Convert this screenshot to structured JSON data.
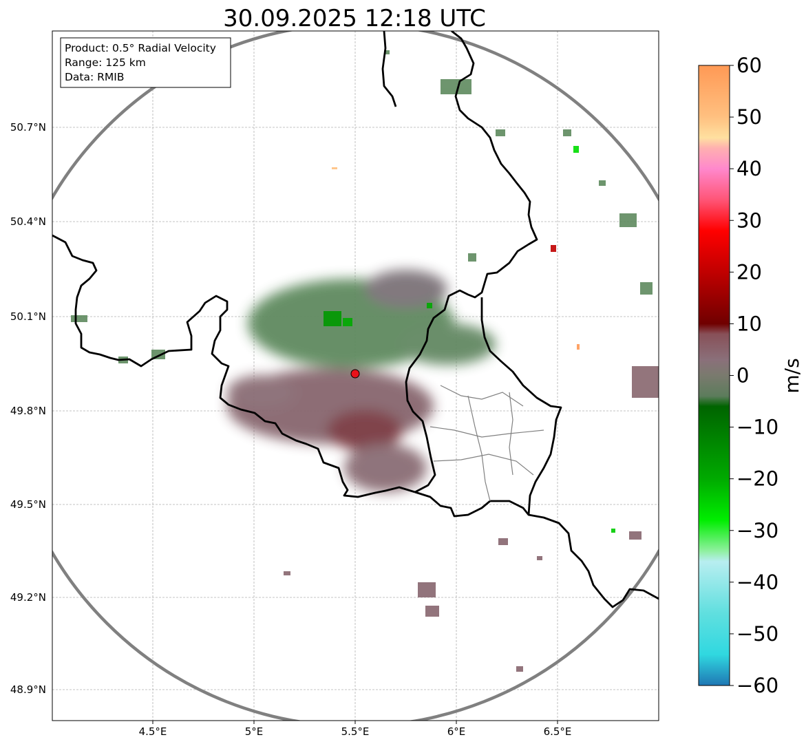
{
  "title": "30.09.2025 12:18 UTC",
  "info": {
    "product": "Product: 0.5° Radial Velocity",
    "range": "Range: 125 km",
    "data": "Data: RMIB"
  },
  "axes": {
    "x_ticks": [
      "4.5°E",
      "5°E",
      "5.5°E",
      "6°E",
      "6.5°E"
    ],
    "y_ticks": [
      "50.7°N",
      "50.4°N",
      "50.1°N",
      "49.8°N",
      "49.5°N",
      "49.2°N",
      "48.9°N"
    ]
  },
  "radar_site": {
    "lon": 5.5,
    "lat": 49.91,
    "color": "#e8121b"
  },
  "colorbar": {
    "label": "m/s",
    "min": -60,
    "max": 60,
    "ticks": [
      "60",
      "50",
      "40",
      "30",
      "20",
      "10",
      "0",
      "−10",
      "−20",
      "−30",
      "−40",
      "−50",
      "−60"
    ],
    "stops": [
      {
        "v": 60,
        "c": "#ff9955"
      },
      {
        "v": 50,
        "c": "#ffc080"
      },
      {
        "v": 46,
        "c": "#ffe0a0"
      },
      {
        "v": 44,
        "c": "#ffb0b0"
      },
      {
        "v": 40,
        "c": "#ff88cc"
      },
      {
        "v": 34,
        "c": "#ff5577"
      },
      {
        "v": 28,
        "c": "#ff0000"
      },
      {
        "v": 20,
        "c": "#c00000"
      },
      {
        "v": 10,
        "c": "#700000"
      },
      {
        "v": 8,
        "c": "#885058"
      },
      {
        "v": 3,
        "c": "#8a707a"
      },
      {
        "v": 0,
        "c": "#7a7a6e"
      },
      {
        "v": -4,
        "c": "#5c7c5c"
      },
      {
        "v": -6,
        "c": "#006400"
      },
      {
        "v": -20,
        "c": "#00aa00"
      },
      {
        "v": -28,
        "c": "#00ee00"
      },
      {
        "v": -34,
        "c": "#90f0a0"
      },
      {
        "v": -36,
        "c": "#b8eef0"
      },
      {
        "v": -46,
        "c": "#60dfdf"
      },
      {
        "v": -54,
        "c": "#30d8e0"
      },
      {
        "v": -60,
        "c": "#1f77b4"
      }
    ]
  },
  "colors": {
    "range_ring": "#808080",
    "echo_green": "#5e8a5e",
    "echo_mauve": "#87666e",
    "echo_darkred": "#7a2f35",
    "echo_green_bright": "#009a00"
  }
}
